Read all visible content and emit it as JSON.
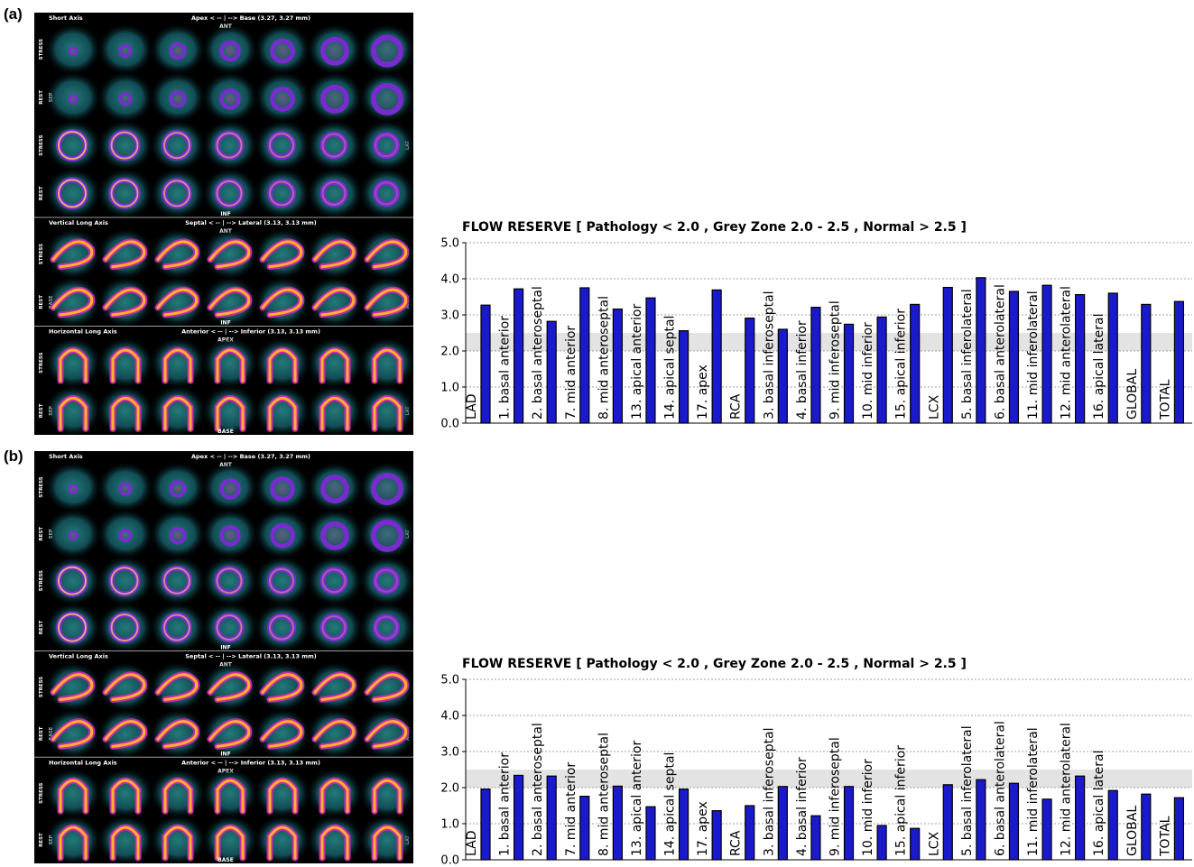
{
  "panels": [
    {
      "label": "(a)",
      "scan": {
        "sections": [
          {
            "title": "Short Axis",
            "header": "Apex < -- | --> Base  (3.27, 3.27 mm)",
            "top_marker": "ANT",
            "rows": [
              {
                "tag": "STRESS",
                "view": "sa_small",
                "left": "",
                "right": ""
              },
              {
                "tag": "REST",
                "view": "sa_small",
                "left": "SEP",
                "right": ""
              },
              {
                "tag": "STRESS",
                "view": "sa_ring",
                "left": "",
                "right": "LAT"
              },
              {
                "tag": "REST",
                "view": "sa_ring",
                "left": "",
                "right": ""
              }
            ],
            "bottom_marker": "INF"
          },
          {
            "title": "Vertical Long Axis",
            "header": "Septal < -- | --> Lateral  (3.13, 3.13 mm)",
            "top_marker": "ANT",
            "rows": [
              {
                "tag": "STRESS",
                "view": "vla",
                "left": "",
                "right": ""
              },
              {
                "tag": "REST",
                "view": "vla",
                "left": "BASE",
                "right": "APEX"
              }
            ],
            "bottom_marker": "INF"
          },
          {
            "title": "Horizontal Long Axis",
            "header": "Anterior < -- | --> Inferior  (3.13, 3.13 mm)",
            "top_marker": "APEX",
            "rows": [
              {
                "tag": "STRESS",
                "view": "hla",
                "left": "",
                "right": ""
              },
              {
                "tag": "REST",
                "view": "hla",
                "left": "SEP",
                "right": "LAT"
              }
            ],
            "bottom_marker": "BASE"
          }
        ]
      }
    },
    {
      "label": "(b)",
      "scan": {
        "sections": [
          {
            "title": "Short Axis",
            "header": "Apex < -- | --> Base  (3.27, 3.27 mm)",
            "top_marker": "ANT",
            "rows": [
              {
                "tag": "STRESS",
                "view": "sa_small",
                "left": "",
                "right": ""
              },
              {
                "tag": "REST",
                "view": "sa_small",
                "left": "SEP",
                "right": "LAT"
              },
              {
                "tag": "STRESS",
                "view": "sa_ring",
                "left": "",
                "right": ""
              },
              {
                "tag": "REST",
                "view": "sa_ring",
                "left": "",
                "right": ""
              }
            ],
            "bottom_marker": "INF"
          },
          {
            "title": "Vertical Long Axis",
            "header": "Septal < -- | --> Lateral  (3.13, 3.13 mm)",
            "top_marker": "ANT",
            "rows": [
              {
                "tag": "STRESS",
                "view": "vla",
                "left": "",
                "right": ""
              },
              {
                "tag": "REST",
                "view": "vla",
                "left": "BASE",
                "right": "APEX"
              }
            ],
            "bottom_marker": "INF"
          },
          {
            "title": "Horizontal Long Axis",
            "header": "Anterior < -- | --> Inferior  (3.13, 3.13 mm)",
            "top_marker": "APEX",
            "rows": [
              {
                "tag": "STRESS",
                "view": "hla",
                "left": "",
                "right": ""
              },
              {
                "tag": "REST",
                "view": "hla",
                "left": "SEP",
                "right": "LAT"
              }
            ],
            "bottom_marker": "BASE"
          }
        ]
      }
    }
  ],
  "colors": {
    "bar": "#1a1acc",
    "bar_edge": "#000000",
    "grey_zone": "#e3e3e3",
    "grid": "#a0a0a0"
  },
  "chart_data": [
    {
      "type": "bar",
      "title": "FLOW RESERVE [ Pathology < 2.0 , Grey Zone 2.0 - 2.5 , Normal > 2.5 ]",
      "ylim": [
        0,
        5
      ],
      "yticks": [
        "0.0",
        "1.0",
        "2.0",
        "3.0",
        "4.0",
        "5.0"
      ],
      "grid": "horizontal dotted",
      "shaded_band": [
        2.0,
        2.5
      ],
      "categories": [
        "LAD",
        "1. basal anterior",
        "2. basal anteroseptal",
        "7. mid anterior",
        "8. mid anteroseptal",
        "13. apical anterior",
        "14. apical septal",
        "17. apex",
        "RCA",
        "3. basal inferoseptal",
        "4. basal inferior",
        "9. mid inferoseptal",
        "10. mid inferior",
        "15. apical inferior",
        "LCX",
        "5. basal inferolateral",
        "6. basal anterolateral",
        "11. mid inferolateral",
        "12. mid anterolateral",
        "16. apical lateral",
        "GLOBAL",
        "TOTAL"
      ],
      "values": [
        3.27,
        3.72,
        2.82,
        3.75,
        3.16,
        3.47,
        2.56,
        3.69,
        2.91,
        2.6,
        3.21,
        2.74,
        2.94,
        3.29,
        3.76,
        4.03,
        3.65,
        3.82,
        3.56,
        3.6,
        3.29,
        3.37
      ]
    },
    {
      "type": "bar",
      "title": "FLOW RESERVE [ Pathology < 2.0 , Grey Zone 2.0 - 2.5 , Normal > 2.5 ]",
      "ylim": [
        0,
        5
      ],
      "yticks": [
        "0.0",
        "1.0",
        "2.0",
        "3.0",
        "4.0",
        "5.0"
      ],
      "grid": "horizontal dotted",
      "shaded_band": [
        2.0,
        2.5
      ],
      "categories": [
        "LAD",
        "1. basal anterior",
        "2. basal anteroseptal",
        "7. mid anterior",
        "8. mid anteroseptal",
        "13. apical anterior",
        "14. apical septal",
        "17. apex",
        "RCA",
        "3. basal inferoseptal",
        "4. basal inferior",
        "9. mid inferoseptal",
        "10. mid inferior",
        "15. apical inferior",
        "LCX",
        "5. basal inferolateral",
        "6. basal anterolateral",
        "11. mid inferolateral",
        "12. mid anterolateral",
        "16. apical lateral",
        "GLOBAL",
        "TOTAL"
      ],
      "values": [
        1.96,
        2.34,
        2.32,
        1.76,
        2.04,
        1.47,
        1.96,
        1.36,
        1.5,
        2.03,
        1.22,
        2.03,
        0.95,
        0.87,
        2.08,
        2.22,
        2.12,
        1.68,
        2.32,
        1.92,
        1.82,
        1.72
      ]
    }
  ]
}
